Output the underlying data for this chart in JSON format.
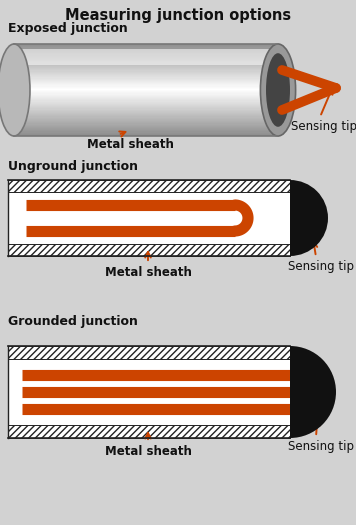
{
  "title": "Measuring junction options",
  "title_fontsize": 10.5,
  "bg_color": "#d2d2d2",
  "orange": "#cc4400",
  "label1": "Exposed junction",
  "label2": "Unground junction",
  "label3": "Grounded junction",
  "sensing_tip": "Sensing tip",
  "metal_sheath": "Metal sheath",
  "label_fontsize": 8.5,
  "section_label_fontsize": 9.0
}
